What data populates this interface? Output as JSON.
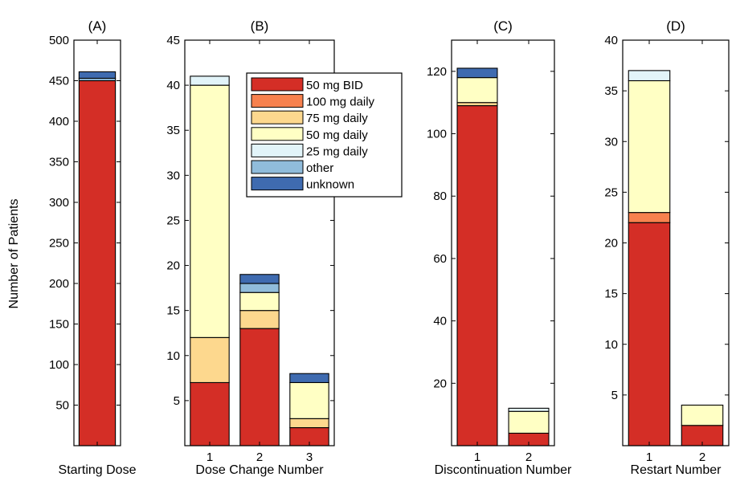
{
  "figure": {
    "ylabel": "Number of Patients"
  },
  "colors": {
    "50 mg BID": "#d42e26",
    "100 mg daily": "#f7814e",
    "75 mg daily": "#fdd88e",
    "50 mg daily": "#ffffc4",
    "25 mg daily": "#e2f4f9",
    "other": "#90bcdb",
    "unknown": "#3f6bb0"
  },
  "legend": {
    "entries": [
      "50 mg BID",
      "100 mg daily",
      "75 mg daily",
      "50 mg daily",
      "25 mg daily",
      "other",
      "unknown"
    ]
  },
  "chart_data": [
    {
      "type": "bar",
      "stacked": true,
      "title": "(A)",
      "xlabel": "Starting Dose",
      "categories": [
        ""
      ],
      "ylim": [
        0,
        500
      ],
      "yticks": [
        50,
        100,
        150,
        200,
        250,
        300,
        350,
        400,
        450,
        500
      ],
      "series": [
        {
          "name": "50 mg BID",
          "values": [
            450
          ]
        },
        {
          "name": "100 mg daily",
          "values": [
            0
          ]
        },
        {
          "name": "75 mg daily",
          "values": [
            0
          ]
        },
        {
          "name": "50 mg daily",
          "values": [
            0
          ]
        },
        {
          "name": "25 mg daily",
          "values": [
            0
          ]
        },
        {
          "name": "other",
          "values": [
            3
          ]
        },
        {
          "name": "unknown",
          "values": [
            8
          ]
        }
      ]
    },
    {
      "type": "bar",
      "stacked": true,
      "title": "(B)",
      "xlabel": "Dose Change Number",
      "categories": [
        "1",
        "2",
        "3"
      ],
      "ylim": [
        0,
        45
      ],
      "yticks": [
        5,
        10,
        15,
        20,
        25,
        30,
        35,
        40,
        45
      ],
      "legend_position": "upper-right",
      "series": [
        {
          "name": "50 mg BID",
          "values": [
            7,
            13,
            2
          ]
        },
        {
          "name": "100 mg daily",
          "values": [
            0,
            0,
            0
          ]
        },
        {
          "name": "75 mg daily",
          "values": [
            5,
            2,
            1
          ]
        },
        {
          "name": "50 mg daily",
          "values": [
            28,
            2,
            4
          ]
        },
        {
          "name": "25 mg daily",
          "values": [
            1,
            0,
            0
          ]
        },
        {
          "name": "other",
          "values": [
            0,
            1,
            0
          ]
        },
        {
          "name": "unknown",
          "values": [
            0,
            1,
            1
          ]
        }
      ]
    },
    {
      "type": "bar",
      "stacked": true,
      "title": "(C)",
      "xlabel": "Discontinuation Number",
      "categories": [
        "1",
        "2"
      ],
      "ylim": [
        0,
        130
      ],
      "yticks": [
        20,
        40,
        60,
        80,
        100,
        120
      ],
      "series": [
        {
          "name": "50 mg BID",
          "values": [
            109,
            4
          ]
        },
        {
          "name": "100 mg daily",
          "values": [
            0,
            0
          ]
        },
        {
          "name": "75 mg daily",
          "values": [
            1,
            0
          ]
        },
        {
          "name": "50 mg daily",
          "values": [
            8,
            7
          ]
        },
        {
          "name": "25 mg daily",
          "values": [
            0,
            1
          ]
        },
        {
          "name": "other",
          "values": [
            0,
            0
          ]
        },
        {
          "name": "unknown",
          "values": [
            3,
            0
          ]
        }
      ]
    },
    {
      "type": "bar",
      "stacked": true,
      "title": "(D)",
      "xlabel": "Restart Number",
      "categories": [
        "1",
        "2"
      ],
      "ylim": [
        0,
        40
      ],
      "yticks": [
        5,
        10,
        15,
        20,
        25,
        30,
        35,
        40
      ],
      "series": [
        {
          "name": "50 mg BID",
          "values": [
            22,
            2
          ]
        },
        {
          "name": "100 mg daily",
          "values": [
            1,
            0
          ]
        },
        {
          "name": "75 mg daily",
          "values": [
            0,
            0
          ]
        },
        {
          "name": "50 mg daily",
          "values": [
            13,
            2
          ]
        },
        {
          "name": "25 mg daily",
          "values": [
            1,
            0
          ]
        },
        {
          "name": "other",
          "values": [
            0,
            0
          ]
        },
        {
          "name": "unknown",
          "values": [
            0,
            0
          ]
        }
      ]
    }
  ]
}
